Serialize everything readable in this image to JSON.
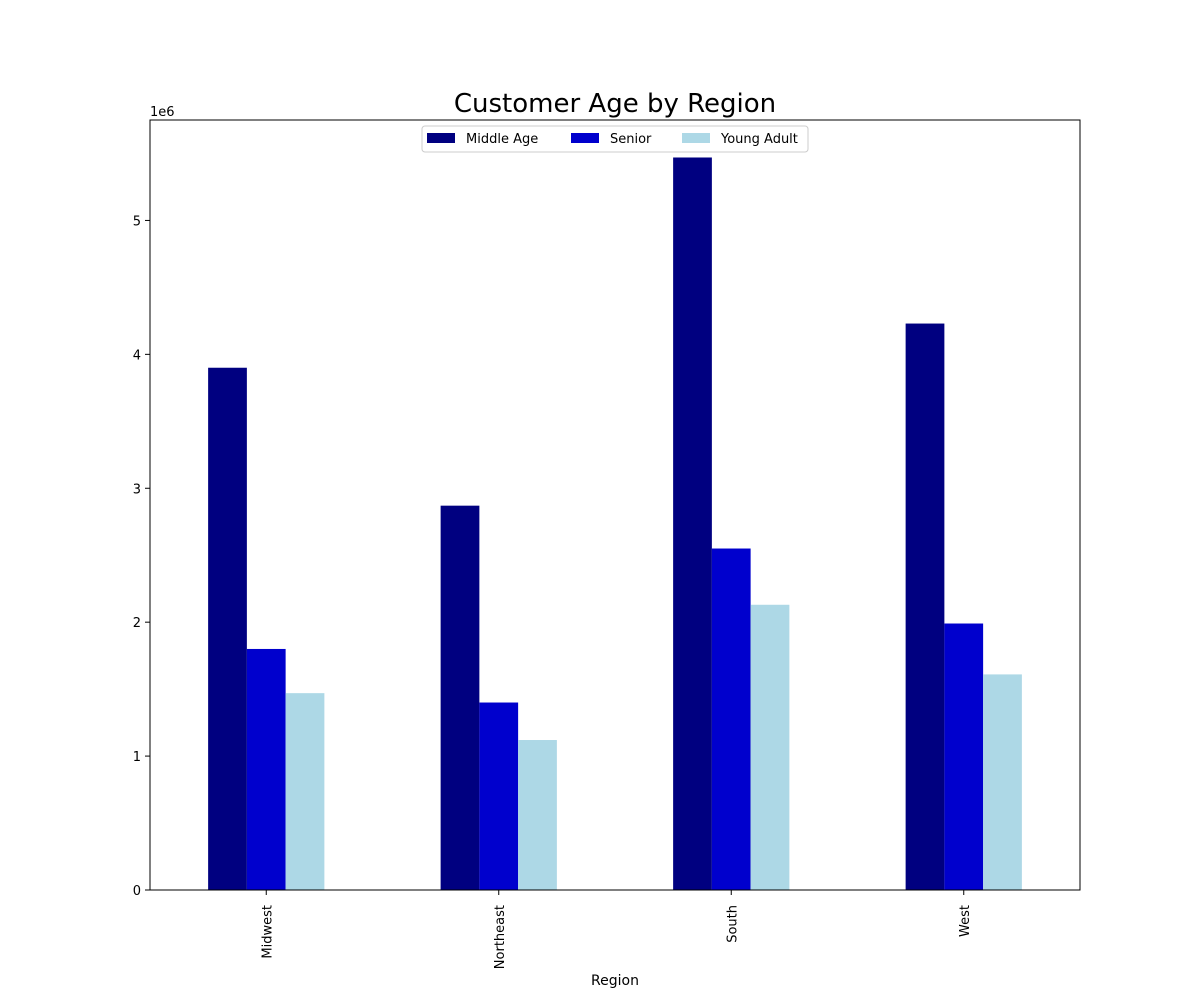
{
  "chart_data": {
    "type": "bar",
    "title": "Customer Age by Region",
    "xlabel": "Region",
    "ylabel": "",
    "y_multiplier_label": "1e6",
    "categories": [
      "Midwest",
      "Northeast",
      "South",
      "West"
    ],
    "series": [
      {
        "name": "Middle Age",
        "color": "#000080",
        "values": [
          3900000,
          2870000,
          5470000,
          4230000
        ]
      },
      {
        "name": "Senior",
        "color": "#0000cd",
        "values": [
          1800000,
          1400000,
          2550000,
          1990000
        ]
      },
      {
        "name": "Young Adult",
        "color": "#add8e6",
        "values": [
          1470000,
          1120000,
          2130000,
          1610000
        ]
      }
    ],
    "y_ticks": [
      0,
      1000000,
      2000000,
      3000000,
      4000000,
      5000000
    ],
    "y_tick_labels": [
      "0",
      "1",
      "2",
      "3",
      "4",
      "5"
    ],
    "ylim": [
      0,
      5750000
    ],
    "grid": false,
    "legend_position": "upper-center"
  }
}
